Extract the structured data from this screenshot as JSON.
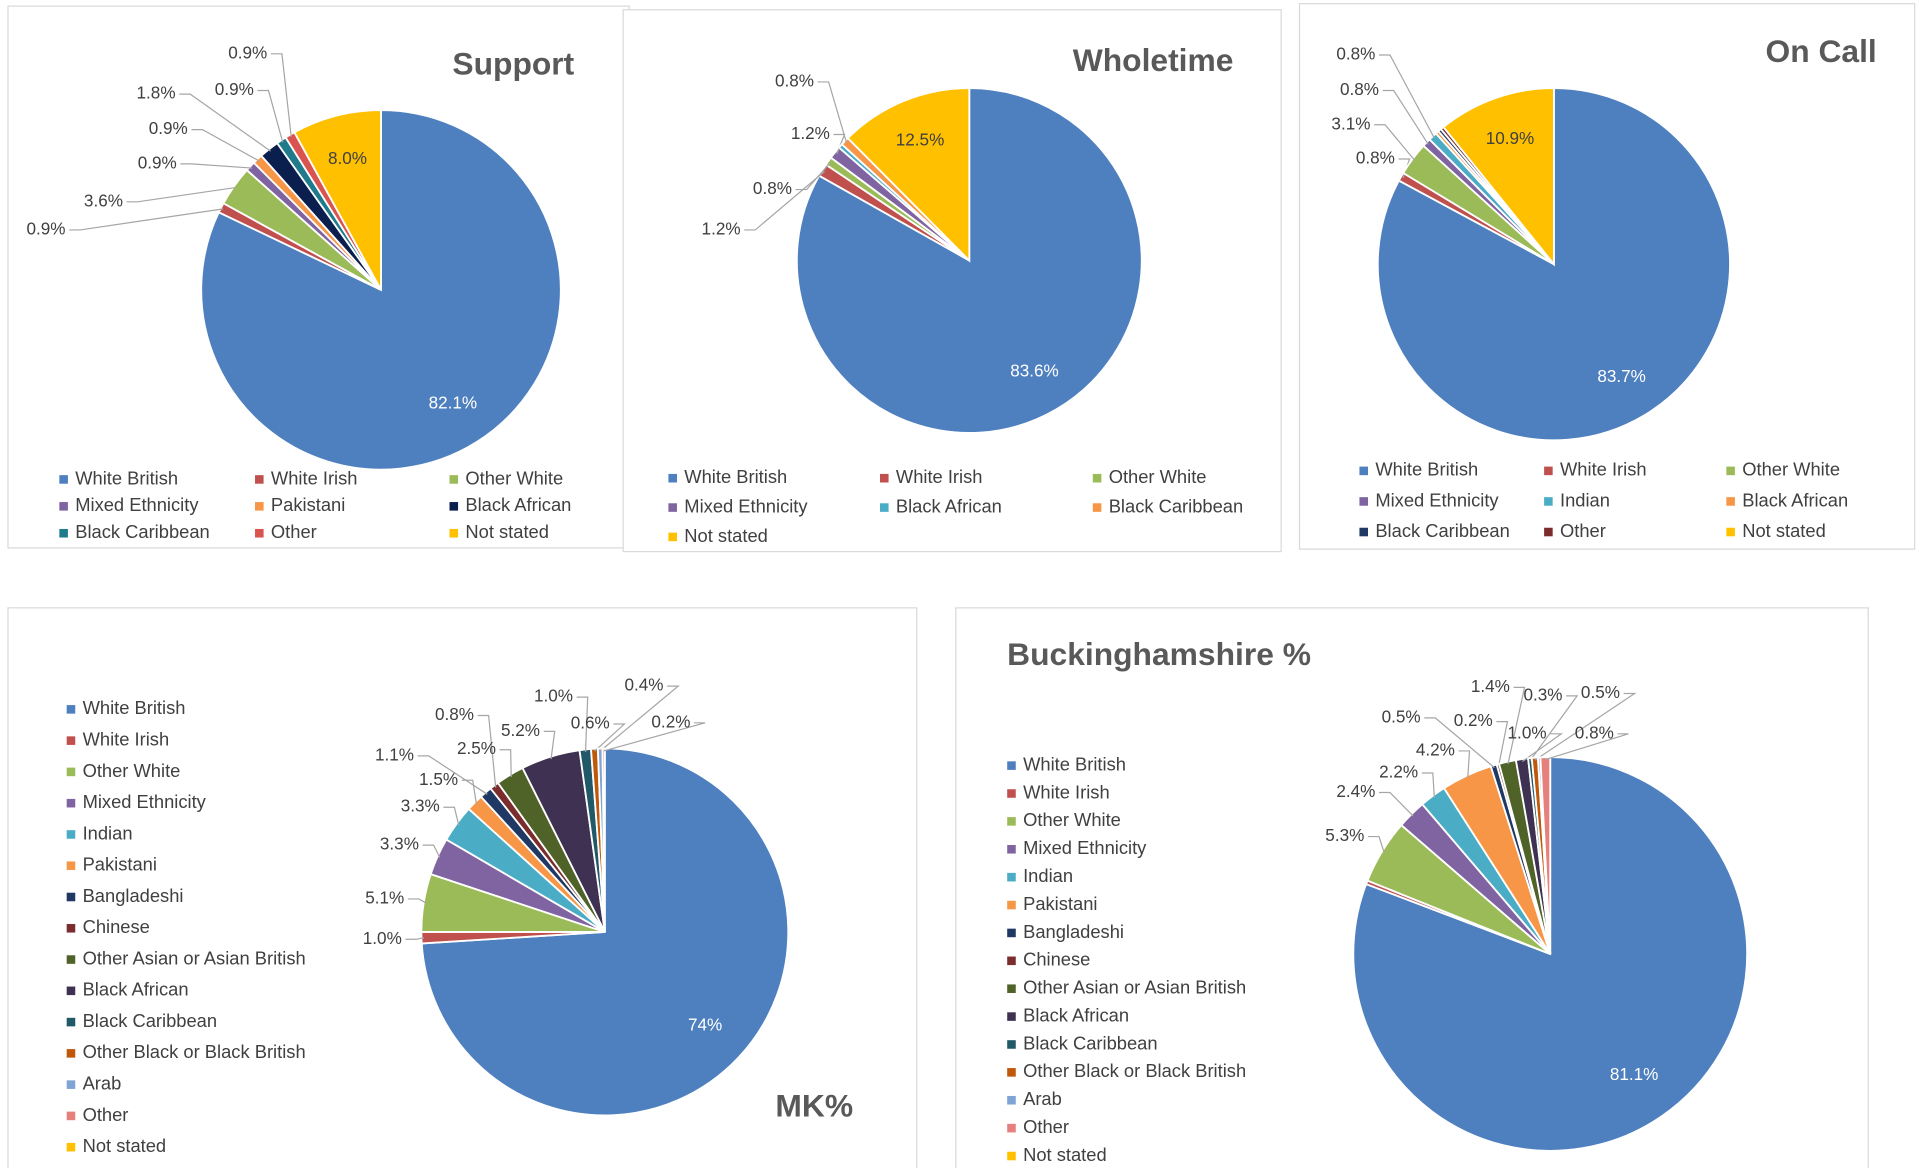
{
  "chart_data": [
    {
      "type": "pie",
      "title": "Support",
      "categories": [
        "White British",
        "White Irish",
        "Other White",
        "Mixed Ethnicity",
        "Pakistani",
        "Black African",
        "Black Caribbean",
        "Other",
        "Not stated"
      ],
      "values": [
        82.1,
        0.9,
        3.6,
        0.9,
        0.9,
        1.8,
        0.9,
        0.9,
        8.0
      ],
      "value_labels": [
        "82.1%",
        "0.9%",
        "3.6%",
        "0.9%",
        "0.9%",
        "1.8%",
        "0.9%",
        "0.9%",
        "8.0%"
      ],
      "colors": [
        "#4e7fbf",
        "#c0504d",
        "#9bbb59",
        "#8064a2",
        "#f79646",
        "#0b1f4f",
        "#1f7a8c",
        "#d9534f",
        "#ffc000"
      ]
    },
    {
      "type": "pie",
      "title": "Wholetime",
      "categories": [
        "White British",
        "White Irish",
        "Other White",
        "Mixed Ethnicity",
        "Black African",
        "Black Caribbean",
        "Not stated"
      ],
      "values": [
        83.6,
        1.2,
        0.8,
        1.2,
        0.4,
        0.8,
        12.5
      ],
      "value_labels": [
        "83.6%",
        "1.2%",
        "0.8%",
        "1.2%",
        null,
        "0.8%",
        "12.5%"
      ],
      "colors": [
        "#4e7fbf",
        "#c0504d",
        "#9bbb59",
        "#8064a2",
        "#4bacc6",
        "#f79646",
        "#ffc000"
      ]
    },
    {
      "type": "pie",
      "title": "On Call",
      "categories": [
        "White British",
        "White Irish",
        "Other White",
        "Mixed Ethnicity",
        "Indian",
        "Black African",
        "Black Caribbean",
        "Other",
        "Not stated"
      ],
      "values": [
        83.7,
        0.8,
        3.1,
        0.8,
        0.8,
        0.3,
        0.3,
        0.3,
        10.9
      ],
      "value_labels": [
        "83.7%",
        "0.8%",
        "3.1%",
        "0.8%",
        "0.8%",
        null,
        null,
        null,
        "10.9%"
      ],
      "colors": [
        "#4e7fbf",
        "#c0504d",
        "#9bbb59",
        "#8064a2",
        "#4bacc6",
        "#f79646",
        "#1f3864",
        "#7b2c2c",
        "#ffc000"
      ]
    },
    {
      "type": "pie",
      "title": "MK%",
      "categories": [
        "White British",
        "White Irish",
        "Other White",
        "Mixed Ethnicity",
        "Indian",
        "Pakistani",
        "Bangladeshi",
        "Chinese",
        "Other Asian or Asian British",
        "Black African",
        "Black Caribbean",
        "Other Black or Black British",
        "Arab",
        "Other",
        "Not stated"
      ],
      "values": [
        74,
        1.0,
        5.1,
        3.3,
        3.3,
        1.5,
        1.1,
        0.8,
        2.5,
        5.2,
        1.0,
        0.6,
        0.4,
        0.2,
        0
      ],
      "value_labels": [
        "74%",
        "1.0%",
        "5.1%",
        "3.3%",
        "3.3%",
        "1.5%",
        "1.1%",
        "0.8%",
        "2.5%",
        "5.2%",
        "1.0%",
        "0.6%",
        "0.4%",
        "0.2%",
        null
      ],
      "colors": [
        "#4e7fbf",
        "#c0504d",
        "#9bbb59",
        "#8064a2",
        "#4bacc6",
        "#f79646",
        "#1f3864",
        "#7b2c2c",
        "#4f6228",
        "#3f3151",
        "#215968",
        "#c0580a",
        "#7ea4d5",
        "#e6807d",
        "#ffc000"
      ]
    },
    {
      "type": "pie",
      "title": "Buckinghamshire %",
      "categories": [
        "White British",
        "White Irish",
        "Other White",
        "Mixed Ethnicity",
        "Indian",
        "Pakistani",
        "Bangladeshi",
        "Chinese",
        "Other Asian or Asian British",
        "Black African",
        "Black Caribbean",
        "Other Black or Black British",
        "Arab",
        "Other",
        "Not stated"
      ],
      "values": [
        81.1,
        0.3,
        5.3,
        2.4,
        2.2,
        4.2,
        0.5,
        0.2,
        1.4,
        1.0,
        0.3,
        0.5,
        0.2,
        0.8,
        0
      ],
      "value_labels": [
        "81.1%",
        null,
        "5.3%",
        "2.4%",
        "2.2%",
        "4.2%",
        "0.5%",
        "0.2%",
        "1.4%",
        "1.0%",
        "0.3%",
        "0.5%",
        null,
        "0.8%",
        null
      ],
      "colors": [
        "#4e7fbf",
        "#c0504d",
        "#9bbb59",
        "#8064a2",
        "#4bacc6",
        "#f79646",
        "#1f3864",
        "#7b2c2c",
        "#4f6228",
        "#3f3151",
        "#215968",
        "#c0580a",
        "#7ea4d5",
        "#e6807d",
        "#ffc000"
      ]
    }
  ]
}
